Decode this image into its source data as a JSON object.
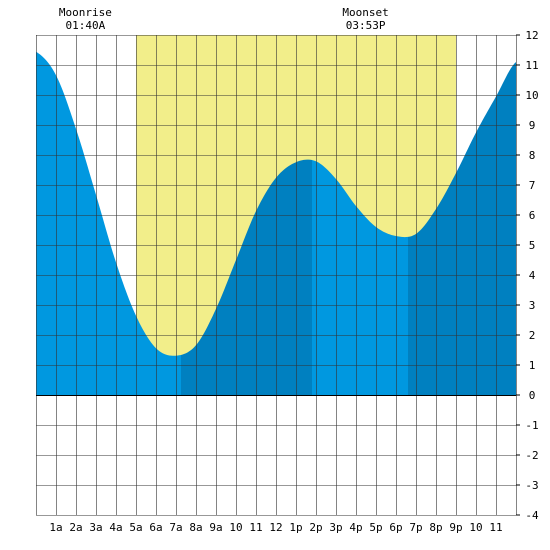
{
  "chart_data": {
    "type": "area",
    "moonrise": {
      "label": "Moonrise",
      "time": "01:40A",
      "hour": 1.67
    },
    "moonset": {
      "label": "Moonset",
      "time": "03:53P",
      "hour": 15.88
    },
    "x_tick_labels": [
      "1a",
      "2a",
      "3a",
      "4a",
      "5a",
      "6a",
      "7a",
      "8a",
      "9a",
      "10",
      "11",
      "12",
      "1p",
      "2p",
      "3p",
      "4p",
      "5p",
      "6p",
      "7p",
      "8p",
      "9p",
      "10",
      "11"
    ],
    "x_tick_hours": [
      1,
      2,
      3,
      4,
      5,
      6,
      7,
      8,
      9,
      10,
      11,
      12,
      13,
      14,
      15,
      16,
      17,
      18,
      19,
      20,
      21,
      22,
      23
    ],
    "xlim": [
      0,
      24
    ],
    "ylim": [
      -4,
      12
    ],
    "y_tick_values": [
      12,
      11,
      10,
      9,
      8,
      7,
      6,
      5,
      4,
      3,
      2,
      1,
      0,
      -1,
      -2,
      -3,
      -4
    ],
    "grid": true,
    "daylight": {
      "start_hour": 5,
      "end_hour": 21
    },
    "tide_extremes": [
      {
        "type": "high",
        "hour": 0.25,
        "height": 11.5
      },
      {
        "type": "low",
        "hour": 7.25,
        "height": 1.3
      },
      {
        "type": "high",
        "hour": 13.8,
        "height": 7.8
      },
      {
        "type": "low",
        "hour": 18.6,
        "height": 5.3
      },
      {
        "type": "high",
        "hour": 24.6,
        "height": 11.6
      }
    ],
    "tide_curve": [
      {
        "hour": 0.0,
        "height": 11.44
      },
      {
        "hour": 1.0,
        "height": 10.66
      },
      {
        "hour": 2.0,
        "height": 8.87
      },
      {
        "hour": 3.0,
        "height": 6.67
      },
      {
        "hour": 4.0,
        "height": 4.42
      },
      {
        "hour": 5.0,
        "height": 2.64
      },
      {
        "hour": 6.0,
        "height": 1.56
      },
      {
        "hour": 7.0,
        "height": 1.31
      },
      {
        "hour": 8.0,
        "height": 1.66
      },
      {
        "hour": 9.0,
        "height": 2.87
      },
      {
        "hour": 10.0,
        "height": 4.5
      },
      {
        "hour": 11.0,
        "height": 6.13
      },
      {
        "hour": 12.0,
        "height": 7.24
      },
      {
        "hour": 13.0,
        "height": 7.76
      },
      {
        "hour": 14.0,
        "height": 7.79
      },
      {
        "hour": 15.0,
        "height": 7.2
      },
      {
        "hour": 16.0,
        "height": 6.3
      },
      {
        "hour": 17.0,
        "height": 5.6
      },
      {
        "hour": 18.0,
        "height": 5.3
      },
      {
        "hour": 19.0,
        "height": 5.37
      },
      {
        "hour": 20.0,
        "height": 6.2
      },
      {
        "hour": 21.0,
        "height": 7.4
      },
      {
        "hour": 22.0,
        "height": 8.75
      },
      {
        "hour": 23.0,
        "height": 9.95
      },
      {
        "hour": 24.0,
        "height": 11.1
      }
    ],
    "colors": {
      "daylight": "#f2ee8a",
      "tide_rising": "#0098e0",
      "tide_falling": "#0080c0",
      "grid": "#333333",
      "background": "#ffffff"
    }
  }
}
